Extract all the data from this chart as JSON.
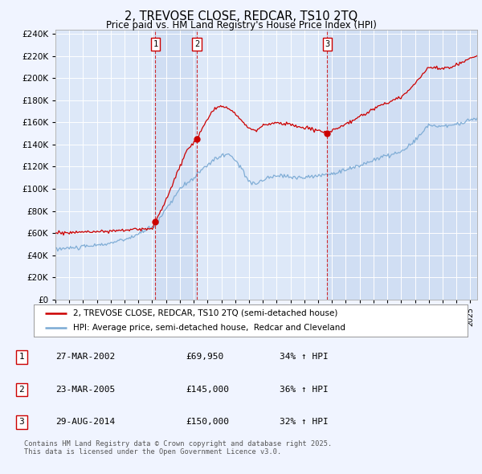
{
  "title": "2, TREVOSE CLOSE, REDCAR, TS10 2TQ",
  "subtitle": "Price paid vs. HM Land Registry's House Price Index (HPI)",
  "ylim": [
    0,
    244000
  ],
  "ytick_step": 20000,
  "background_color": "#f0f4ff",
  "plot_bg_color": "#dde8f8",
  "sale_bg_color": "#c8d8f0",
  "grid_color": "#ffffff",
  "red_line_color": "#cc0000",
  "blue_line_color": "#7baad4",
  "sale_marker_color": "#cc0000",
  "sale_dates": [
    2002.23,
    2005.23,
    2014.66
  ],
  "sale_prices": [
    69950,
    145000,
    150000
  ],
  "sale_labels": [
    "1",
    "2",
    "3"
  ],
  "legend_label_red": "2, TREVOSE CLOSE, REDCAR, TS10 2TQ (semi-detached house)",
  "legend_label_blue": "HPI: Average price, semi-detached house,  Redcar and Cleveland",
  "table_rows": [
    [
      "1",
      "27-MAR-2002",
      "£69,950",
      "34% ↑ HPI"
    ],
    [
      "2",
      "23-MAR-2005",
      "£145,000",
      "36% ↑ HPI"
    ],
    [
      "3",
      "29-AUG-2014",
      "£150,000",
      "32% ↑ HPI"
    ]
  ],
  "footer": "Contains HM Land Registry data © Crown copyright and database right 2025.\nThis data is licensed under the Open Government Licence v3.0.",
  "xmin": 1995.0,
  "xmax": 2025.5
}
